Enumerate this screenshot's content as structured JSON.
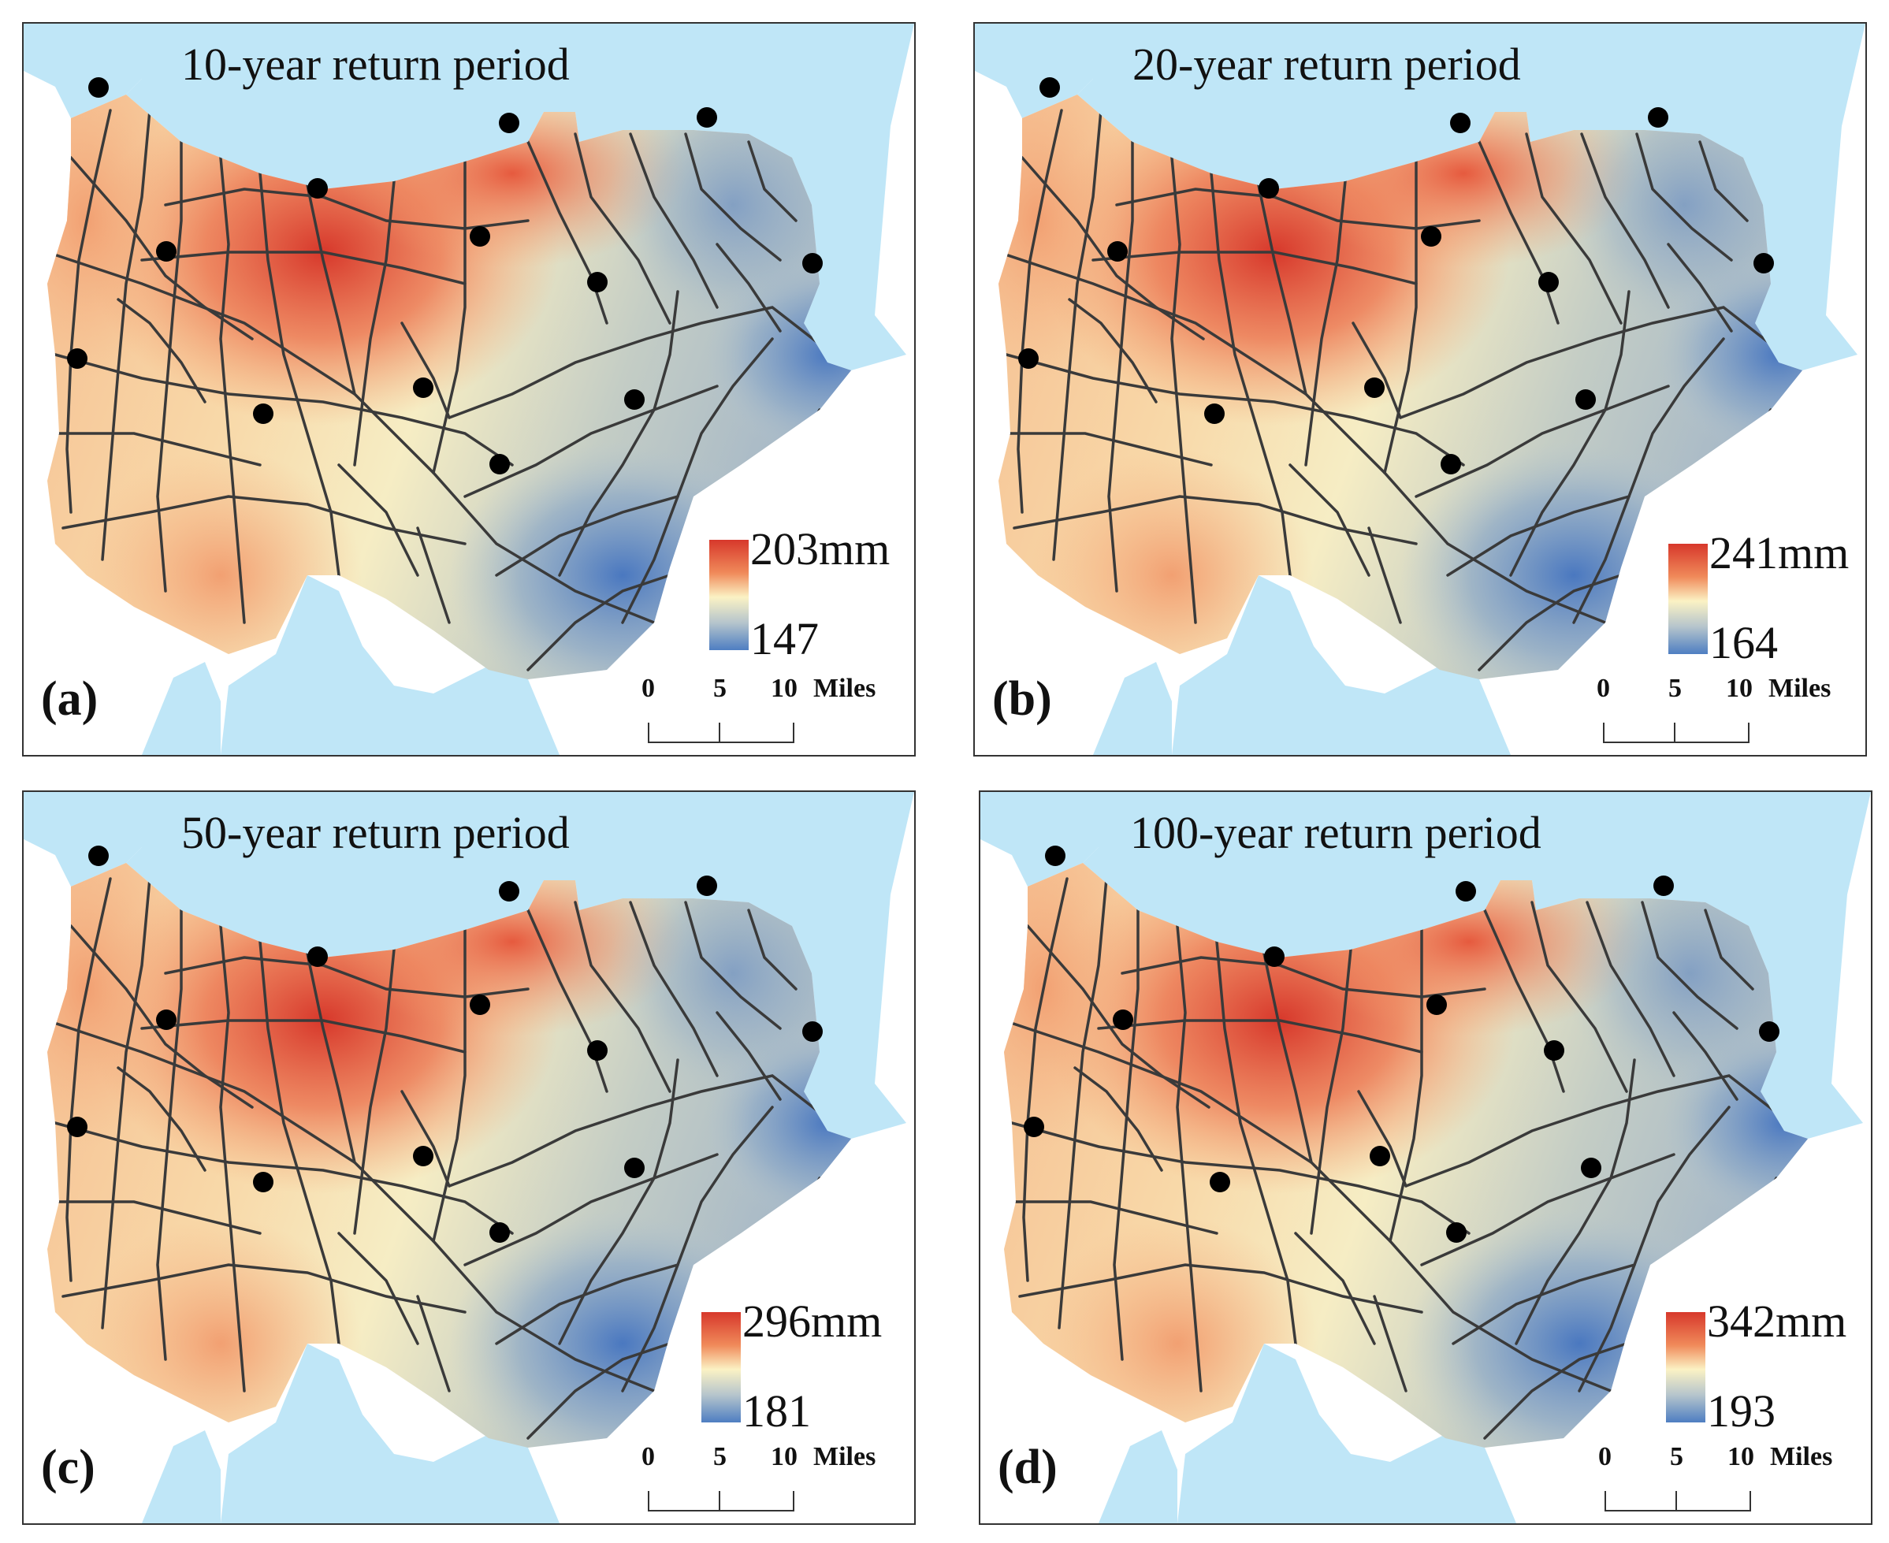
{
  "figure": {
    "panels": [
      {
        "label": "(a)",
        "title": "10-year return period",
        "legend_max": "203",
        "legend_unit": "mm",
        "legend_min": "147",
        "scale": {
          "t0": "0",
          "t5": "5",
          "t10": "10",
          "unit": "Miles"
        }
      },
      {
        "label": "(b)",
        "title": "20-year return period",
        "legend_max": "241",
        "legend_unit": "mm",
        "legend_min": "164",
        "scale": {
          "t0": "0",
          "t5": "5",
          "t10": "10",
          "unit": "Miles"
        }
      },
      {
        "label": "(c)",
        "title": "50-year return period",
        "legend_max": "296",
        "legend_unit": "mm",
        "legend_min": "181",
        "scale": {
          "t0": "0",
          "t5": "5",
          "t10": "10",
          "unit": "Miles"
        }
      },
      {
        "label": "(d)",
        "title": "100-year return period",
        "legend_max": "342",
        "legend_unit": "mm",
        "legend_min": "193",
        "scale": {
          "t0": "0",
          "t5": "5",
          "t10": "10",
          "unit": "Miles"
        }
      }
    ],
    "colors": {
      "high": "#d7382b",
      "mid": "#fbf2c4",
      "low": "#4e7ec2",
      "water": "#bfe6f7",
      "road": "#3a3a3a",
      "station": "#000000"
    }
  }
}
